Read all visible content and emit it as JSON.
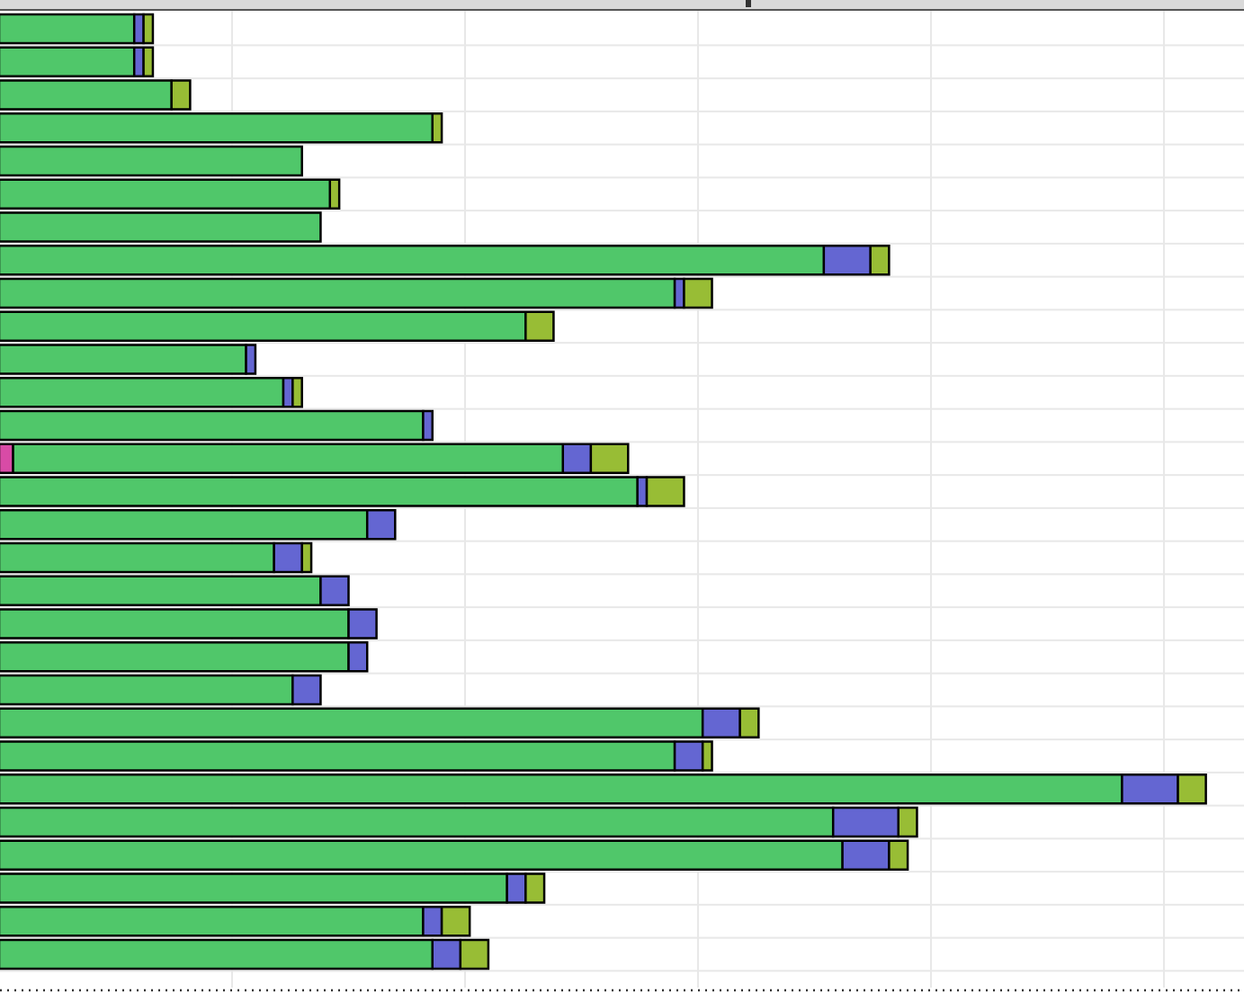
{
  "chart_data": {
    "type": "bar",
    "orientation": "horizontal",
    "stacked": true,
    "title": "",
    "xlabel": "",
    "ylabel": "",
    "grid": true,
    "legend": "none",
    "xlim": [
      0,
      26.7
    ],
    "colors": {
      "bar_green": "#50c76a",
      "bar_blue": "#6466d2",
      "bar_olive": "#98bd35",
      "bar_pink": "#d84ba6",
      "outline": "#000000",
      "grid": "#e8e8e8",
      "top_strip": "#d9d9d9"
    },
    "series": [
      {
        "name": "",
        "color": "#d84ba6",
        "values": [
          0,
          0,
          0,
          0,
          0,
          0,
          0,
          0,
          0,
          0,
          0,
          0,
          0,
          0.3,
          0,
          0,
          0,
          0,
          0,
          0,
          0,
          0,
          0,
          0,
          0,
          0,
          0,
          0,
          0
        ]
      },
      {
        "name": "",
        "color": "#50c76a",
        "values": [
          2.9,
          2.9,
          3.7,
          9.3,
          6.5,
          7.1,
          6.9,
          17.7,
          14.5,
          11.3,
          5.3,
          6.1,
          9.1,
          11.8,
          13.7,
          7.9,
          5.9,
          6.9,
          7.5,
          7.5,
          6.3,
          15.1,
          14.5,
          24.1,
          17.9,
          18.1,
          10.9,
          9.1,
          9.3
        ]
      },
      {
        "name": "",
        "color": "#6466d2",
        "values": [
          0.2,
          0.2,
          0,
          0,
          0,
          0,
          0,
          1.0,
          0.2,
          0,
          0.2,
          0.2,
          0.2,
          0.6,
          0.2,
          0.6,
          0.6,
          0.6,
          0.6,
          0.4,
          0.6,
          0.8,
          0.6,
          1.2,
          1.4,
          1.0,
          0.4,
          0.4,
          0.6
        ]
      },
      {
        "name": "",
        "color": "#98bd35",
        "values": [
          0.2,
          0.2,
          0.4,
          0.2,
          0,
          0.2,
          0,
          0.4,
          0.6,
          0.6,
          0,
          0.2,
          0,
          0.8,
          0.8,
          0,
          0.2,
          0,
          0,
          0,
          0,
          0.4,
          0.2,
          0.6,
          0.4,
          0.4,
          0.4,
          0.6,
          0.6
        ]
      }
    ]
  }
}
